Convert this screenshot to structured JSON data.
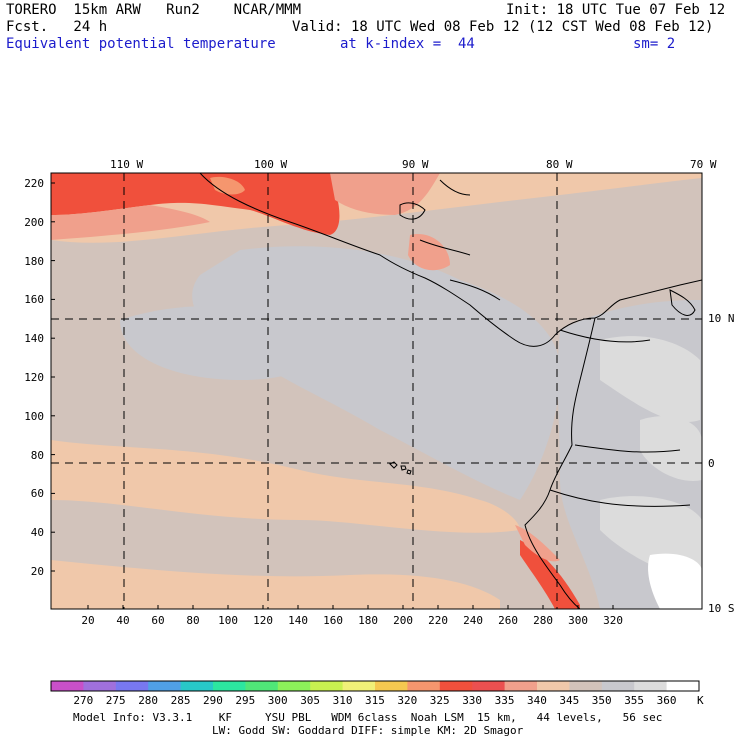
{
  "header": {
    "model_name": "TORERO  15km ARW   Run2    NCAR/MMM",
    "init": "Init: 18 UTC Tue 07 Feb 12",
    "fcst": "Fcst.   24 h",
    "valid": "Valid: 18 UTC Wed 08 Feb 12 (12 CST Wed 08 Feb 12)",
    "field": "Equivalent potential temperature",
    "level": "at k-index =  44",
    "smoothing": "sm= 2"
  },
  "map": {
    "lon_labels": [
      "110 W",
      "100 W",
      "90 W",
      "80 W",
      "70 W"
    ],
    "lat_labels": [
      "10 N",
      "0",
      "10 S"
    ],
    "x_ticks": [
      "20",
      "40",
      "60",
      "80",
      "100",
      "120",
      "140",
      "160",
      "180",
      "200",
      "220",
      "240",
      "260",
      "280",
      "300",
      "320"
    ],
    "y_ticks": [
      "20",
      "40",
      "60",
      "80",
      "100",
      "120",
      "140",
      "160",
      "180",
      "200",
      "220"
    ]
  },
  "legend": {
    "labels": [
      "270",
      "275",
      "280",
      "285",
      "290",
      "295",
      "300",
      "305",
      "310",
      "315",
      "320",
      "325",
      "330",
      "335",
      "340",
      "345",
      "350",
      "355",
      "360"
    ],
    "unit": "K",
    "colors": [
      "#c850c8",
      "#a070dc",
      "#7878f0",
      "#50a0e6",
      "#28c8c8",
      "#2ce6a0",
      "#50e678",
      "#8cf05a",
      "#c8f050",
      "#f0f078",
      "#f5c850",
      "#f5966e",
      "#f0503c",
      "#eb5050",
      "#f0a08c",
      "#f0c8aa",
      "#d2c3bb",
      "#c8c8cd",
      "#dcdcdc",
      "#ffffff"
    ]
  },
  "footer": {
    "line1": "Model Info: V3.3.1    KF     YSU PBL   WDM 6class  Noah LSM  15 km,   44 levels,   56 sec",
    "line2": "LW: Godd SW: Goddard DIFF: simple KM: 2D Smagor"
  }
}
